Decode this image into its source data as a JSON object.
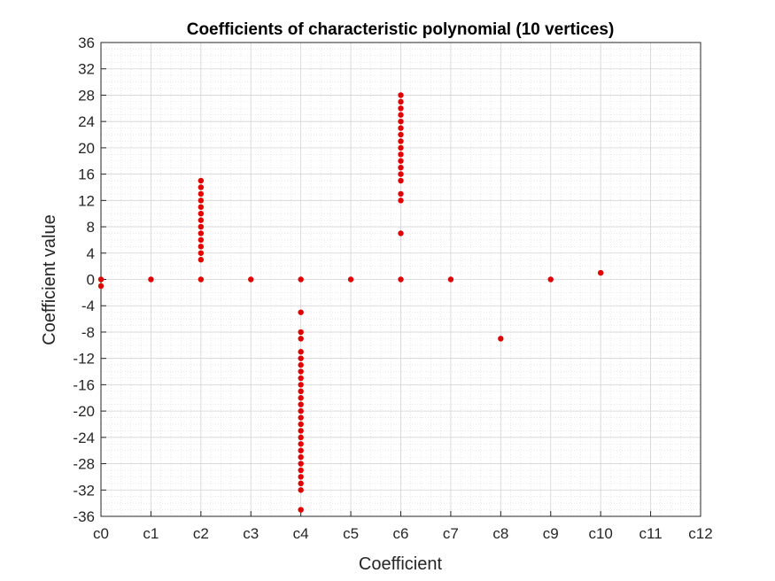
{
  "chart_data": {
    "type": "scatter",
    "title": "Coefficients of characteristic polynomial  (10 vertices)",
    "xlabel": "Coefficient",
    "ylabel": "Coefficient value",
    "x_categories": [
      "c0",
      "c1",
      "c2",
      "c3",
      "c4",
      "c5",
      "c6",
      "c7",
      "c8",
      "c9",
      "c10",
      "c11",
      "c12"
    ],
    "xlim": [
      0,
      12
    ],
    "ylim": [
      -36,
      36
    ],
    "y_ticks": [
      36,
      32,
      28,
      24,
      20,
      16,
      12,
      8,
      4,
      0,
      -4,
      -8,
      -12,
      -16,
      -20,
      -24,
      -28,
      -32,
      -36
    ],
    "grid": true,
    "minor_grid": true,
    "marker_color": "#e00000",
    "points": [
      [
        0,
        0
      ],
      [
        0,
        -1
      ],
      [
        1,
        0
      ],
      [
        2,
        0
      ],
      [
        2,
        3
      ],
      [
        2,
        4
      ],
      [
        2,
        5
      ],
      [
        2,
        6
      ],
      [
        2,
        7
      ],
      [
        2,
        8
      ],
      [
        2,
        9
      ],
      [
        2,
        10
      ],
      [
        2,
        11
      ],
      [
        2,
        12
      ],
      [
        2,
        13
      ],
      [
        2,
        14
      ],
      [
        2,
        15
      ],
      [
        3,
        0
      ],
      [
        4,
        0
      ],
      [
        4,
        -5
      ],
      [
        4,
        -8
      ],
      [
        4,
        -9
      ],
      [
        4,
        -11
      ],
      [
        4,
        -12
      ],
      [
        4,
        -13
      ],
      [
        4,
        -14
      ],
      [
        4,
        -15
      ],
      [
        4,
        -16
      ],
      [
        4,
        -17
      ],
      [
        4,
        -18
      ],
      [
        4,
        -19
      ],
      [
        4,
        -20
      ],
      [
        4,
        -21
      ],
      [
        4,
        -22
      ],
      [
        4,
        -23
      ],
      [
        4,
        -24
      ],
      [
        4,
        -25
      ],
      [
        4,
        -26
      ],
      [
        4,
        -27
      ],
      [
        4,
        -28
      ],
      [
        4,
        -29
      ],
      [
        4,
        -30
      ],
      [
        4,
        -31
      ],
      [
        4,
        -32
      ],
      [
        4,
        -35
      ],
      [
        5,
        0
      ],
      [
        6,
        0
      ],
      [
        6,
        7
      ],
      [
        6,
        12
      ],
      [
        6,
        13
      ],
      [
        6,
        15
      ],
      [
        6,
        16
      ],
      [
        6,
        17
      ],
      [
        6,
        18
      ],
      [
        6,
        19
      ],
      [
        6,
        20
      ],
      [
        6,
        21
      ],
      [
        6,
        22
      ],
      [
        6,
        23
      ],
      [
        6,
        24
      ],
      [
        6,
        25
      ],
      [
        6,
        26
      ],
      [
        6,
        27
      ],
      [
        6,
        28
      ],
      [
        7,
        0
      ],
      [
        8,
        -9
      ],
      [
        9,
        0
      ],
      [
        10,
        1
      ]
    ]
  }
}
